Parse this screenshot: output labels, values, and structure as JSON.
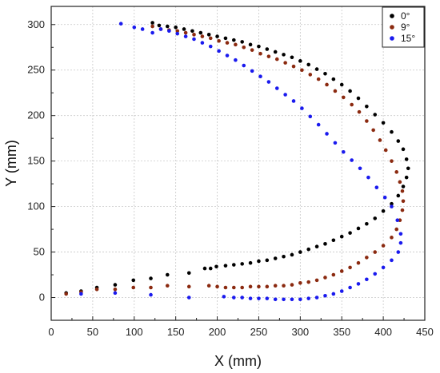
{
  "chart_data": {
    "type": "scatter",
    "title": "",
    "xlabel": "X (mm)",
    "ylabel": "Y (mm)",
    "xlim": [
      0,
      450
    ],
    "ylim": [
      -25,
      320
    ],
    "xticks": [
      "0",
      "50",
      "100",
      "150",
      "200",
      "250",
      "300",
      "350",
      "400",
      "450"
    ],
    "yticks": [
      "0",
      "50",
      "100",
      "150",
      "200",
      "250",
      "300"
    ],
    "grid": true,
    "legend_position": "top-right",
    "series": [
      {
        "name": "0°",
        "color": "#000000",
        "points": [
          [
            18,
            5
          ],
          [
            36,
            7
          ],
          [
            55,
            11
          ],
          [
            77,
            14
          ],
          [
            99,
            19
          ],
          [
            120,
            21
          ],
          [
            140,
            25
          ],
          [
            166,
            27
          ],
          [
            185,
            32
          ],
          [
            192,
            32
          ],
          [
            199,
            34
          ],
          [
            210,
            35
          ],
          [
            220,
            36
          ],
          [
            230,
            37
          ],
          [
            240,
            38
          ],
          [
            250,
            40
          ],
          [
            260,
            41
          ],
          [
            270,
            43
          ],
          [
            280,
            45
          ],
          [
            290,
            47
          ],
          [
            300,
            50
          ],
          [
            310,
            53
          ],
          [
            320,
            56
          ],
          [
            330,
            59
          ],
          [
            340,
            63
          ],
          [
            350,
            67
          ],
          [
            360,
            71
          ],
          [
            370,
            76
          ],
          [
            380,
            81
          ],
          [
            390,
            87
          ],
          [
            400,
            95
          ],
          [
            410,
            103
          ],
          [
            418,
            112
          ],
          [
            424,
            122
          ],
          [
            428,
            132
          ],
          [
            430,
            142
          ],
          [
            428,
            152
          ],
          [
            424,
            163
          ],
          [
            418,
            172
          ],
          [
            410,
            182
          ],
          [
            400,
            192
          ],
          [
            390,
            201
          ],
          [
            380,
            210
          ],
          [
            370,
            219
          ],
          [
            360,
            227
          ],
          [
            350,
            234
          ],
          [
            340,
            240
          ],
          [
            330,
            246
          ],
          [
            320,
            251
          ],
          [
            310,
            256
          ],
          [
            300,
            260
          ],
          [
            290,
            264
          ],
          [
            280,
            267
          ],
          [
            270,
            270
          ],
          [
            260,
            273
          ],
          [
            250,
            276
          ],
          [
            240,
            278
          ],
          [
            230,
            281
          ],
          [
            220,
            283
          ],
          [
            210,
            285
          ],
          [
            200,
            287
          ],
          [
            190,
            289
          ],
          [
            180,
            291
          ],
          [
            170,
            293
          ],
          [
            160,
            295
          ],
          [
            150,
            297
          ],
          [
            140,
            298
          ],
          [
            130,
            299
          ],
          [
            122,
            302
          ]
        ]
      },
      {
        "name": "9°",
        "color": "#8b2a10",
        "points": [
          [
            18,
            4
          ],
          [
            36,
            6
          ],
          [
            55,
            9
          ],
          [
            77,
            9
          ],
          [
            99,
            11
          ],
          [
            120,
            11
          ],
          [
            140,
            13
          ],
          [
            166,
            12
          ],
          [
            190,
            13
          ],
          [
            200,
            12
          ],
          [
            210,
            11
          ],
          [
            220,
            11
          ],
          [
            230,
            11
          ],
          [
            240,
            12
          ],
          [
            250,
            12
          ],
          [
            260,
            12
          ],
          [
            270,
            13
          ],
          [
            280,
            13
          ],
          [
            290,
            14
          ],
          [
            300,
            16
          ],
          [
            310,
            17
          ],
          [
            320,
            19
          ],
          [
            330,
            22
          ],
          [
            340,
            25
          ],
          [
            350,
            29
          ],
          [
            360,
            33
          ],
          [
            370,
            38
          ],
          [
            380,
            44
          ],
          [
            390,
            50
          ],
          [
            400,
            57
          ],
          [
            410,
            66
          ],
          [
            416,
            75
          ],
          [
            420,
            85
          ],
          [
            423,
            96
          ],
          [
            424,
            106
          ],
          [
            423,
            117
          ],
          [
            420,
            127
          ],
          [
            416,
            138
          ],
          [
            410,
            150
          ],
          [
            403,
            162
          ],
          [
            396,
            173
          ],
          [
            388,
            184
          ],
          [
            380,
            194
          ],
          [
            371,
            204
          ],
          [
            362,
            212
          ],
          [
            352,
            220
          ],
          [
            342,
            227
          ],
          [
            332,
            234
          ],
          [
            322,
            240
          ],
          [
            312,
            245
          ],
          [
            302,
            250
          ],
          [
            292,
            254
          ],
          [
            282,
            258
          ],
          [
            272,
            262
          ],
          [
            262,
            265
          ],
          [
            252,
            268
          ],
          [
            242,
            272
          ],
          [
            232,
            275
          ],
          [
            222,
            278
          ],
          [
            212,
            280
          ],
          [
            202,
            282
          ],
          [
            192,
            285
          ],
          [
            182,
            287
          ],
          [
            172,
            289
          ],
          [
            162,
            291
          ],
          [
            152,
            293
          ],
          [
            142,
            294
          ],
          [
            132,
            295
          ],
          [
            122,
            298
          ]
        ]
      },
      {
        "name": "15°",
        "color": "#1a1aee",
        "points": [
          [
            36,
            4
          ],
          [
            77,
            5
          ],
          [
            120,
            3
          ],
          [
            166,
            0
          ],
          [
            208,
            1
          ],
          [
            220,
            0
          ],
          [
            230,
            0
          ],
          [
            240,
            -1
          ],
          [
            250,
            -1
          ],
          [
            260,
            -1
          ],
          [
            270,
            -2
          ],
          [
            280,
            -2
          ],
          [
            290,
            -2
          ],
          [
            300,
            -2
          ],
          [
            310,
            -1
          ],
          [
            320,
            0
          ],
          [
            330,
            2
          ],
          [
            340,
            4
          ],
          [
            350,
            7
          ],
          [
            360,
            11
          ],
          [
            370,
            15
          ],
          [
            380,
            20
          ],
          [
            390,
            26
          ],
          [
            400,
            33
          ],
          [
            410,
            41
          ],
          [
            418,
            50
          ],
          [
            421,
            60
          ],
          [
            421,
            70
          ],
          [
            417,
            85
          ],
          [
            410,
            100
          ],
          [
            402,
            110
          ],
          [
            392,
            121
          ],
          [
            382,
            132
          ],
          [
            372,
            142
          ],
          [
            362,
            151
          ],
          [
            352,
            160
          ],
          [
            342,
            170
          ],
          [
            332,
            180
          ],
          [
            322,
            190
          ],
          [
            312,
            199
          ],
          [
            302,
            208
          ],
          [
            292,
            216
          ],
          [
            282,
            223
          ],
          [
            272,
            230
          ],
          [
            262,
            237
          ],
          [
            252,
            243
          ],
          [
            242,
            249
          ],
          [
            232,
            255
          ],
          [
            222,
            261
          ],
          [
            212,
            266
          ],
          [
            202,
            271
          ],
          [
            192,
            276
          ],
          [
            182,
            280
          ],
          [
            172,
            284
          ],
          [
            162,
            287
          ],
          [
            152,
            290
          ],
          [
            142,
            293
          ],
          [
            132,
            295
          ],
          [
            122,
            291
          ],
          [
            110,
            295
          ],
          [
            100,
            297
          ],
          [
            84,
            301
          ]
        ]
      }
    ]
  }
}
